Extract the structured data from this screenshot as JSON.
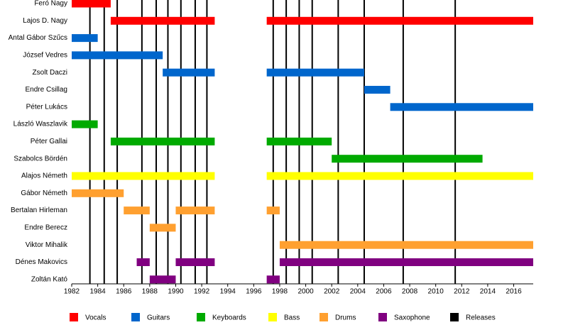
{
  "chart_data": {
    "type": "timeline",
    "categories": [
      "Feró Nagy",
      "Lajos D. Nagy",
      "Antal Gábor Szűcs",
      "József Vedres",
      "Zsolt Daczi",
      "Endre Csillag",
      "Péter Lukács",
      "László Waszlavik",
      "Péter Gallai",
      "Szabolcs Bördén",
      "Alajos Németh",
      "Gábor Németh",
      "Bertalan Hirleman",
      "Endre Berecz",
      "Viktor Mihalik",
      "Dénes Makovics",
      "Zoltán Kató"
    ],
    "xlim": [
      1982,
      2017.5
    ],
    "xticks": [
      1982,
      1984,
      1986,
      1988,
      1990,
      1992,
      1994,
      1996,
      1998,
      2000,
      2002,
      2004,
      2006,
      2008,
      2010,
      2012,
      2014,
      2016
    ],
    "series": [
      {
        "name": "Vocals",
        "color": "#ff0000",
        "spans": [
          {
            "member": "Feró Nagy",
            "start": 1982,
            "end": 1985
          },
          {
            "member": "Lajos D. Nagy",
            "start": 1985,
            "end": 1993
          },
          {
            "member": "Lajos D. Nagy",
            "start": 1997,
            "end": 2017.5
          }
        ]
      },
      {
        "name": "Guitars",
        "color": "#0066cc",
        "spans": [
          {
            "member": "Antal Gábor Szűcs",
            "start": 1982,
            "end": 1984
          },
          {
            "member": "József Vedres",
            "start": 1982,
            "end": 1989
          },
          {
            "member": "Zsolt Daczi",
            "start": 1989,
            "end": 1993
          },
          {
            "member": "Zsolt Daczi",
            "start": 1997,
            "end": 2004.5
          },
          {
            "member": "Endre Csillag",
            "start": 2004.5,
            "end": 2006.5
          },
          {
            "member": "Péter Lukács",
            "start": 2006.5,
            "end": 2017.5
          }
        ]
      },
      {
        "name": "Keyboards",
        "color": "#00aa00",
        "spans": [
          {
            "member": "László Waszlavik",
            "start": 1982,
            "end": 1984
          },
          {
            "member": "Péter Gallai",
            "start": 1985,
            "end": 1993
          },
          {
            "member": "Péter Gallai",
            "start": 1997,
            "end": 2002
          },
          {
            "member": "Szabolcs Bördén",
            "start": 2002,
            "end": 2013.6
          }
        ]
      },
      {
        "name": "Bass",
        "color": "#ffff00",
        "spans": [
          {
            "member": "Alajos Németh",
            "start": 1982,
            "end": 1993
          },
          {
            "member": "Alajos Németh",
            "start": 1997,
            "end": 2017.5
          }
        ]
      },
      {
        "name": "Drums",
        "color": "#ffa030",
        "spans": [
          {
            "member": "Gábor Németh",
            "start": 1982,
            "end": 1986
          },
          {
            "member": "Bertalan Hirleman",
            "start": 1986,
            "end": 1988
          },
          {
            "member": "Bertalan Hirleman",
            "start": 1990,
            "end": 1993
          },
          {
            "member": "Bertalan Hirleman",
            "start": 1997,
            "end": 1998
          },
          {
            "member": "Endre Berecz",
            "start": 1988,
            "end": 1990
          },
          {
            "member": "Viktor Mihalik",
            "start": 1998,
            "end": 2017.5
          }
        ]
      },
      {
        "name": "Saxophone",
        "color": "#800080",
        "spans": [
          {
            "member": "Dénes Makovics",
            "start": 1987,
            "end": 1988
          },
          {
            "member": "Dénes Makovics",
            "start": 1990,
            "end": 1993
          },
          {
            "member": "Dénes Makovics",
            "start": 1998,
            "end": 2017.5
          },
          {
            "member": "Zoltán Kató",
            "start": 1988,
            "end": 1990
          },
          {
            "member": "Zoltán Kató",
            "start": 1997,
            "end": 1998
          }
        ]
      },
      {
        "name": "Releases",
        "color": "#000000",
        "values": [
          1983.4,
          1984.5,
          1985.5,
          1987.4,
          1988.5,
          1989.4,
          1990.4,
          1991.5,
          1992.4,
          1997.5,
          1998.5,
          1999.5,
          2000.5,
          2002.5,
          2004.5,
          2007.5,
          2011.5
        ]
      }
    ]
  }
}
